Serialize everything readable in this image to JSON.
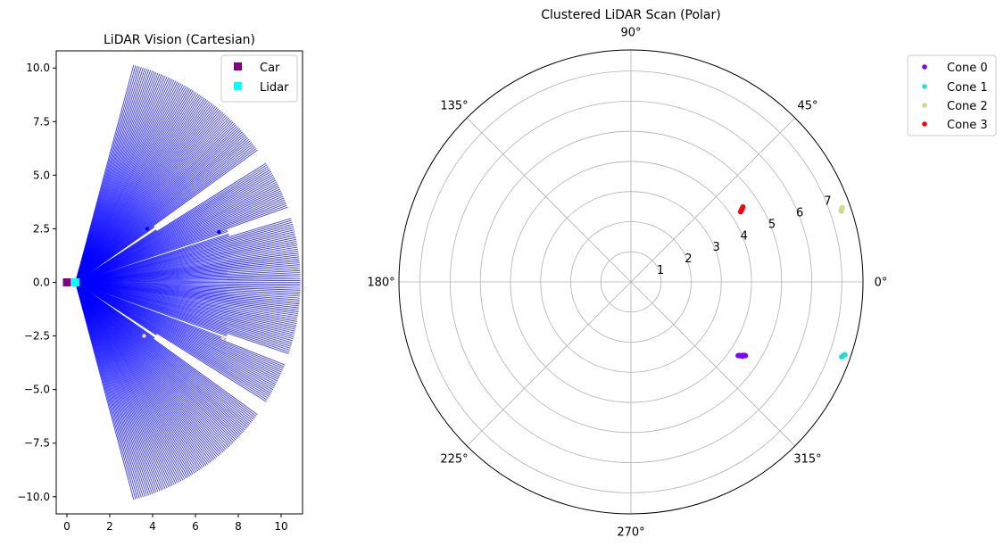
{
  "chart_data": [
    {
      "type": "scatter",
      "title": "LiDAR Vision (Cartesian)",
      "xlim": [
        -0.5,
        11
      ],
      "ylim": [
        -10.8,
        10.8
      ],
      "xticks": [
        0,
        2,
        4,
        6,
        8,
        10
      ],
      "xtick_labels": [
        "0",
        "2",
        "4",
        "6",
        "8",
        "10"
      ],
      "yticks": [
        -10,
        -7.5,
        -5,
        -2.5,
        0,
        2.5,
        5,
        7.5,
        10
      ],
      "ytick_labels": [
        "−10.0",
        "−7.5",
        "−5.0",
        "−2.5",
        "0.0",
        "2.5",
        "5.0",
        "7.5",
        "10.0"
      ],
      "grid": false,
      "legend_position": "upper-right",
      "rays": {
        "origin": [
          0.4,
          0
        ],
        "angle_range_deg": [
          -75,
          75
        ],
        "angle_step_deg": 0.5,
        "max_range": 10.5,
        "color": "#0000ff",
        "blocked": [
          {
            "angle_deg": 34,
            "range": 4.5,
            "half_width_deg": 1.5
          },
          {
            "angle_deg": 18,
            "range": 7.5,
            "half_width_deg": 1.0
          },
          {
            "angle_deg": -34,
            "range": 4.5,
            "half_width_deg": 1.5
          },
          {
            "angle_deg": -20,
            "range": 7.5,
            "half_width_deg": 1.0
          }
        ]
      },
      "series": [
        {
          "name": "Car",
          "marker": "square",
          "color": "#800080",
          "x": [
            0
          ],
          "y": [
            0
          ]
        },
        {
          "name": "Lidar",
          "marker": "square",
          "color": "#00ffff",
          "x": [
            0.4
          ],
          "y": [
            0
          ]
        }
      ],
      "hit_points": [
        {
          "x": 3.75,
          "y": 2.5,
          "color": "#0000ff"
        },
        {
          "x": 7.1,
          "y": 2.35,
          "color": "#0000ff"
        },
        {
          "x": 3.6,
          "y": -2.5,
          "color": "#f5dd8a"
        },
        {
          "x": 7.3,
          "y": -2.6,
          "color": "#f5dd8a"
        }
      ]
    },
    {
      "type": "scatter",
      "projection": "polar",
      "title": "Clustered LiDAR Scan (Polar)",
      "rmax": 7.7,
      "rticks": [
        1,
        2,
        3,
        4,
        5,
        6,
        7
      ],
      "rtick_labels": [
        "1",
        "2",
        "3",
        "4",
        "5",
        "6",
        "7"
      ],
      "rlabel_angle_deg": 22.5,
      "theta_ticks_deg": [
        0,
        45,
        90,
        135,
        180,
        225,
        270,
        315
      ],
      "theta_tick_labels": [
        "0°",
        "45°",
        "90°",
        "135°",
        "180°",
        "225°",
        "270°",
        "315°"
      ],
      "grid": true,
      "legend_position": "outside-upper-right",
      "series": [
        {
          "name": "Cone 0",
          "color": "#8000ff",
          "theta_deg": [
            -34.5,
            -34.0,
            -33.5,
            -33.0,
            -32.8,
            -34.2,
            -33.7
          ],
          "r": [
            4.32,
            4.38,
            4.42,
            4.47,
            4.52,
            4.35,
            4.45
          ]
        },
        {
          "name": "Cone 1",
          "color": "#1ce0d8",
          "theta_deg": [
            -19.6,
            -19.3,
            -19.0,
            -18.8,
            -19.4
          ],
          "r": [
            7.42,
            7.45,
            7.47,
            7.5,
            7.44
          ]
        },
        {
          "name": "Cone 2",
          "color": "#d4d98a",
          "theta_deg": [
            18.6,
            18.9,
            19.2,
            19.4
          ],
          "r": [
            7.36,
            7.38,
            7.41,
            7.43
          ]
        },
        {
          "name": "Cone 3",
          "color": "#ff0000",
          "theta_deg": [
            32.6,
            33.0,
            33.4,
            33.8,
            33.2
          ],
          "r": [
            4.32,
            4.37,
            4.42,
            4.47,
            4.4
          ]
        }
      ]
    }
  ]
}
